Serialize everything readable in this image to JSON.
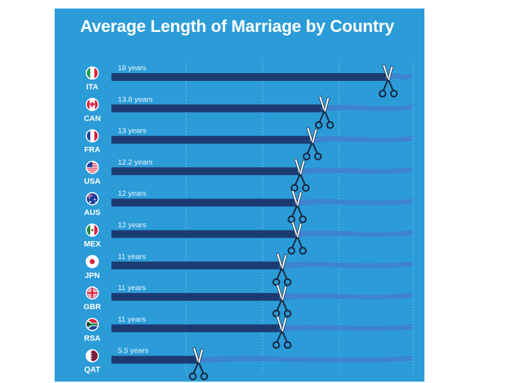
{
  "chart_data": {
    "type": "bar",
    "orientation": "horizontal",
    "title": "Average Length of Marriage by Country",
    "categories": [
      "ITA",
      "CAN",
      "FRA",
      "USA",
      "AUS",
      "MEX",
      "JPN",
      "GBR",
      "RSA",
      "QAT"
    ],
    "values": [
      18,
      13.8,
      13,
      12.2,
      12,
      12,
      11,
      11,
      11,
      5.5
    ],
    "value_labels": [
      "18 years",
      "13.8 years",
      "13 years",
      "12.2 years",
      "12 years",
      "12 years",
      "11 years",
      "11 years",
      "11 years",
      "5.5 years"
    ],
    "flags": [
      "italy-flag-icon",
      "canada-flag-icon",
      "france-flag-icon",
      "usa-flag-icon",
      "australia-flag-icon",
      "mexico-flag-icon",
      "japan-flag-icon",
      "uk-flag-icon",
      "south-africa-flag-icon",
      "qatar-flag-icon"
    ],
    "xlim": [
      0,
      18
    ],
    "grid": "vertical-dotted",
    "legend": "none",
    "colors": {
      "background": "#2b9cd8",
      "bar": "#1d3b73",
      "ribbon": "#3f82cf",
      "text": "#ffffff",
      "scissors": "#1a2a44"
    }
  }
}
